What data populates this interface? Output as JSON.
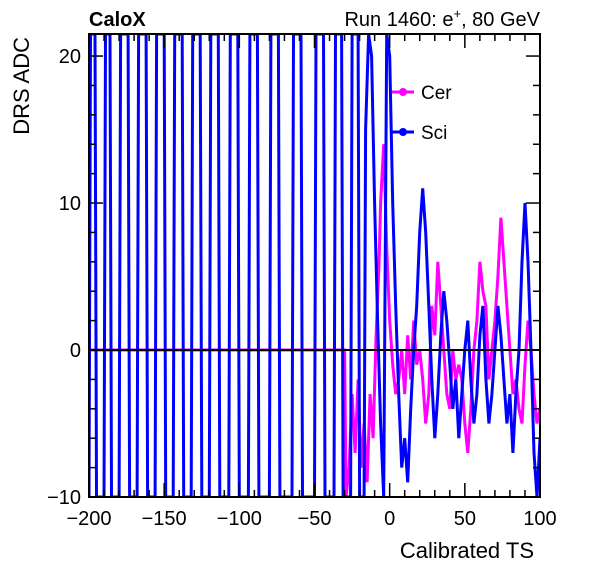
{
  "header": {
    "left": "CaloX",
    "right_prefix": "Run 1460: e",
    "right_superscript": "+",
    "right_suffix": ", 80 GeV"
  },
  "chart_data": {
    "type": "line",
    "xlabel": "Calibrated TS",
    "ylabel": "DRS ADC",
    "xlim": [
      -200,
      100
    ],
    "ylim": [
      -10,
      21.5
    ],
    "xticks": [
      -200,
      -150,
      -100,
      -50,
      0,
      50,
      100
    ],
    "xtick_labels": [
      "−200",
      "−150",
      "−100",
      "−50",
      "0",
      "50",
      "100"
    ],
    "yticks": [
      -10,
      0,
      10,
      20
    ],
    "ytick_labels": [
      "−10",
      "0",
      "10",
      "20"
    ],
    "zero_line": true,
    "grid": false,
    "legend": "top-right",
    "series": [
      {
        "name": "Cer",
        "color": "#ff00ff",
        "marker": "circle",
        "points": [
          [
            -200,
            0
          ],
          [
            -30,
            0
          ],
          [
            -29,
            -10
          ],
          [
            -27,
            -8
          ],
          [
            -25,
            -3
          ],
          [
            -23,
            -7
          ],
          [
            -21,
            -2
          ],
          [
            -19,
            -8
          ],
          [
            -17,
            -5
          ],
          [
            -15,
            -9
          ],
          [
            -13,
            -3
          ],
          [
            -11,
            -6
          ],
          [
            -9,
            1
          ],
          [
            -7,
            6
          ],
          [
            -6,
            10
          ],
          [
            -4,
            14
          ],
          [
            -2,
            7
          ],
          [
            0,
            2
          ],
          [
            2,
            -1
          ],
          [
            4,
            -3
          ],
          [
            6,
            -2
          ],
          [
            8,
            0
          ],
          [
            10,
            -3
          ],
          [
            12,
            1
          ],
          [
            14,
            -2
          ],
          [
            16,
            2
          ],
          [
            18,
            -1
          ],
          [
            20,
            0
          ],
          [
            22,
            -2
          ],
          [
            24,
            -5
          ],
          [
            26,
            -3
          ],
          [
            28,
            3
          ],
          [
            30,
            1
          ],
          [
            32,
            6
          ],
          [
            34,
            3
          ],
          [
            36,
            0
          ],
          [
            38,
            -3
          ],
          [
            40,
            -4
          ],
          [
            42,
            0
          ],
          [
            44,
            -2
          ],
          [
            46,
            -1
          ],
          [
            48,
            -2
          ],
          [
            50,
            -5
          ],
          [
            52,
            -7
          ],
          [
            54,
            -4
          ],
          [
            56,
            0
          ],
          [
            58,
            2
          ],
          [
            60,
            6
          ],
          [
            62,
            4
          ],
          [
            64,
            3
          ],
          [
            66,
            -2
          ],
          [
            68,
            0
          ],
          [
            70,
            2
          ],
          [
            72,
            5
          ],
          [
            74,
            9
          ],
          [
            76,
            6
          ],
          [
            78,
            3
          ],
          [
            80,
            0
          ],
          [
            82,
            -3
          ],
          [
            84,
            -2
          ],
          [
            86,
            -4
          ],
          [
            88,
            -5
          ],
          [
            90,
            -1
          ],
          [
            92,
            2
          ],
          [
            94,
            0
          ],
          [
            96,
            -3
          ],
          [
            98,
            -5
          ],
          [
            100,
            -4
          ]
        ]
      },
      {
        "name": "Sci",
        "color": "#0000ff",
        "marker": "circle",
        "points": [
          [
            -200,
            -10
          ],
          [
            -199,
            21.5
          ],
          [
            -196,
            21.5
          ],
          [
            -195,
            -10
          ],
          [
            -190,
            -10
          ],
          [
            -189,
            21.5
          ],
          [
            -186,
            21.5
          ],
          [
            -185,
            -10
          ],
          [
            -180,
            -10
          ],
          [
            -179,
            21.5
          ],
          [
            -174,
            21.5
          ],
          [
            -173,
            -10
          ],
          [
            -168,
            -10
          ],
          [
            -167,
            21.5
          ],
          [
            -162,
            21.5
          ],
          [
            -161,
            -10
          ],
          [
            -156,
            -10
          ],
          [
            -155,
            21.5
          ],
          [
            -150,
            21.5
          ],
          [
            -149,
            -10
          ],
          [
            -144,
            -10
          ],
          [
            -143,
            21.5
          ],
          [
            -138,
            21.5
          ],
          [
            -137,
            -10
          ],
          [
            -132,
            -10
          ],
          [
            -131,
            21.5
          ],
          [
            -126,
            21.5
          ],
          [
            -125,
            -10
          ],
          [
            -120,
            -10
          ],
          [
            -119,
            21.5
          ],
          [
            -114,
            21.5
          ],
          [
            -113,
            -10
          ],
          [
            -107,
            -10
          ],
          [
            -106,
            21.5
          ],
          [
            -101,
            21.5
          ],
          [
            -100,
            -10
          ],
          [
            -94,
            -10
          ],
          [
            -93,
            21.5
          ],
          [
            -88,
            21.5
          ],
          [
            -87,
            -10
          ],
          [
            -80,
            -10
          ],
          [
            -79,
            21.5
          ],
          [
            -74,
            21.5
          ],
          [
            -73,
            -10
          ],
          [
            -65,
            -10
          ],
          [
            -64,
            21.5
          ],
          [
            -59,
            21.5
          ],
          [
            -58,
            -10
          ],
          [
            -50,
            -10
          ],
          [
            -49,
            21.5
          ],
          [
            -44,
            21.5
          ],
          [
            -43,
            -10
          ],
          [
            -37,
            -10
          ],
          [
            -36,
            21.5
          ],
          [
            -32,
            21.5
          ],
          [
            -31,
            -10
          ],
          [
            -26,
            -10
          ],
          [
            -25,
            21.5
          ],
          [
            -21,
            21.5
          ],
          [
            -20,
            -10
          ],
          [
            -17,
            -10
          ],
          [
            -16,
            15
          ],
          [
            -14,
            21.5
          ],
          [
            -12,
            20
          ],
          [
            -10,
            10
          ],
          [
            -8,
            2
          ],
          [
            -6,
            -5
          ],
          [
            -4,
            -10
          ],
          [
            -2,
            21.5
          ],
          [
            0,
            20
          ],
          [
            2,
            10
          ],
          [
            4,
            3
          ],
          [
            6,
            -3
          ],
          [
            8,
            -8
          ],
          [
            10,
            -6
          ],
          [
            12,
            -9
          ],
          [
            14,
            -4
          ],
          [
            16,
            0
          ],
          [
            18,
            3
          ],
          [
            20,
            8
          ],
          [
            22,
            11
          ],
          [
            24,
            8
          ],
          [
            26,
            3
          ],
          [
            28,
            -2
          ],
          [
            30,
            -6
          ],
          [
            32,
            -3
          ],
          [
            34,
            1
          ],
          [
            36,
            4
          ],
          [
            38,
            2
          ],
          [
            40,
            -1
          ],
          [
            42,
            -4
          ],
          [
            44,
            -2
          ],
          [
            46,
            -6
          ],
          [
            48,
            -3
          ],
          [
            50,
            0
          ],
          [
            52,
            2
          ],
          [
            54,
            -2
          ],
          [
            56,
            -5
          ],
          [
            58,
            -3
          ],
          [
            60,
            1
          ],
          [
            62,
            3
          ],
          [
            64,
            -2
          ],
          [
            66,
            -5
          ],
          [
            68,
            -3
          ],
          [
            70,
            0
          ],
          [
            72,
            3
          ],
          [
            74,
            1
          ],
          [
            76,
            -2
          ],
          [
            78,
            -5
          ],
          [
            80,
            -3
          ],
          [
            82,
            -7
          ],
          [
            84,
            -3
          ],
          [
            86,
            0
          ],
          [
            88,
            6
          ],
          [
            90,
            10
          ],
          [
            92,
            6
          ],
          [
            94,
            0
          ],
          [
            96,
            -7
          ],
          [
            98,
            -10
          ],
          [
            100,
            -6
          ]
        ]
      }
    ]
  }
}
